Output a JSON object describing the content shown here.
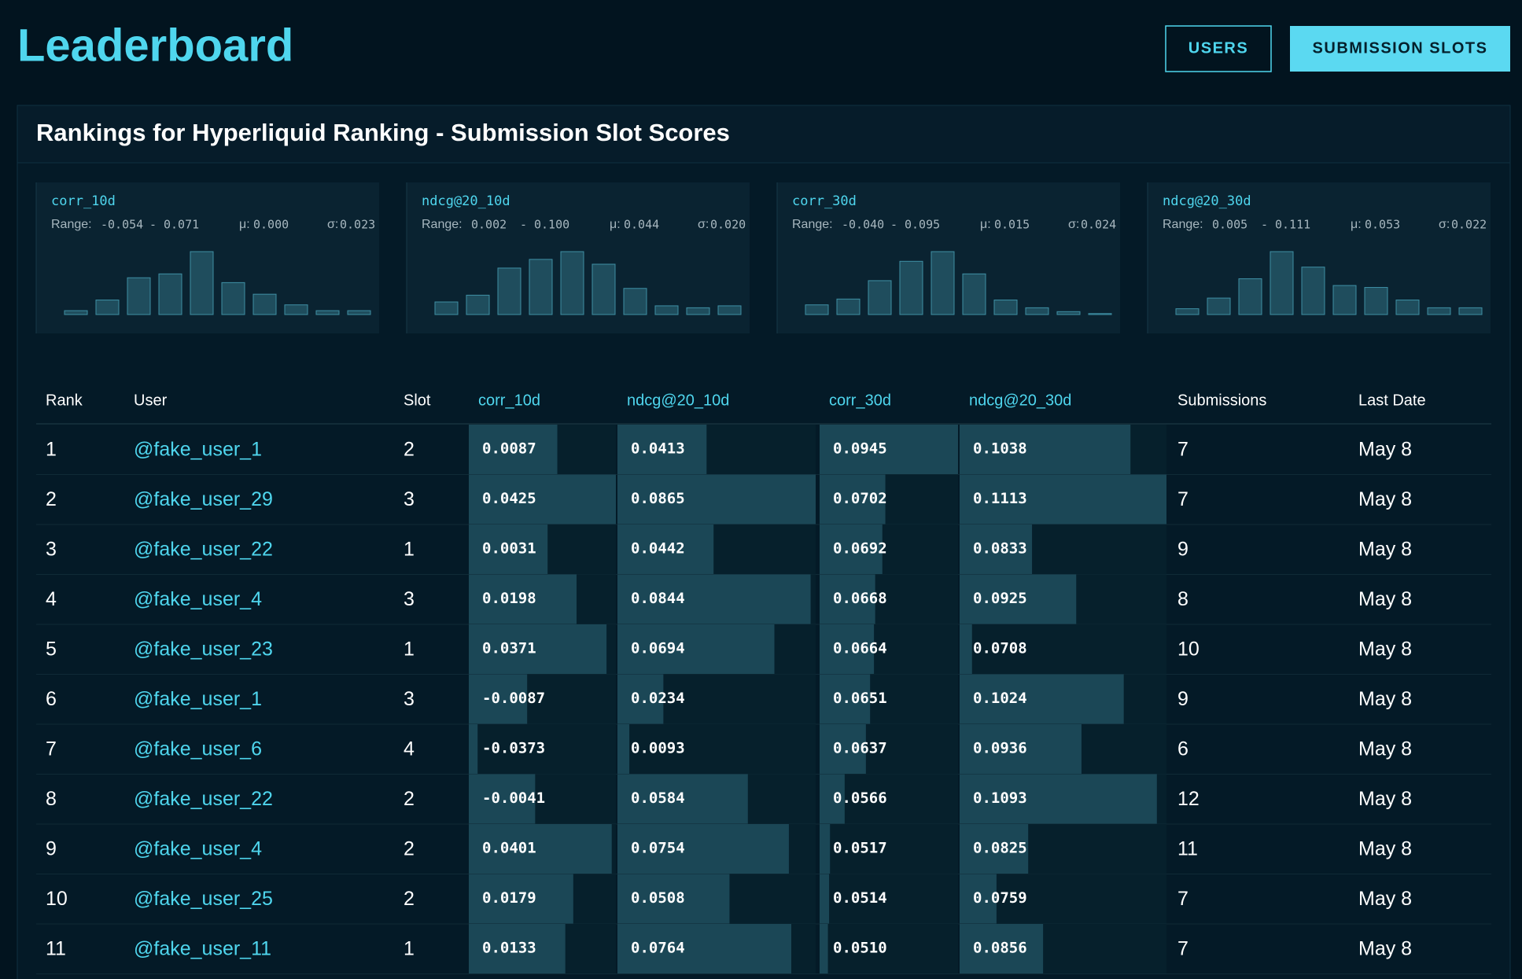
{
  "header": {
    "title": "Leaderboard",
    "buttons": [
      "USERS",
      "SUBMISSION SLOTS"
    ]
  },
  "panel": {
    "title": "Rankings for Hyperliquid Ranking - Submission Slot Scores"
  },
  "histograms": [
    {
      "name": "corr_10d",
      "range_label": "Range:",
      "min": "-0.054",
      "sep": "-",
      "max": "0.071",
      "mu_label": "μ:",
      "mu": "0.000",
      "sigma_label": "σ:",
      "sigma": "0.023",
      "counts": [
        4,
        15,
        38,
        42,
        65,
        33,
        21,
        10,
        4,
        4
      ]
    },
    {
      "name": "ndcg@20_10d",
      "range_label": "Range:",
      "min": "0.002",
      "sep": "-",
      "max": "0.100",
      "mu_label": "μ:",
      "mu": "0.044",
      "sigma_label": "σ:",
      "sigma": "0.020",
      "counts": [
        13,
        20,
        48,
        57,
        65,
        52,
        27,
        9,
        7,
        9
      ]
    },
    {
      "name": "corr_30d",
      "range_label": "Range:",
      "min": "-0.040",
      "sep": "-",
      "max": "0.095",
      "mu_label": "μ:",
      "mu": "0.015",
      "sigma_label": "σ:",
      "sigma": "0.024",
      "counts": [
        10,
        16,
        35,
        55,
        65,
        42,
        15,
        7,
        3,
        1
      ]
    },
    {
      "name": "ndcg@20_30d",
      "range_label": "Range:",
      "min": "0.005",
      "sep": "-",
      "max": "0.111",
      "mu_label": "μ:",
      "mu": "0.053",
      "sigma_label": "σ:",
      "sigma": "0.022",
      "counts": [
        6,
        17,
        37,
        65,
        49,
        30,
        28,
        15,
        7,
        7
      ]
    }
  ],
  "table": {
    "columns": [
      "Rank",
      "User",
      "Slot",
      "corr_10d",
      "ndcg@20_10d",
      "corr_30d",
      "ndcg@20_30d",
      "Submissions",
      "Last Date"
    ],
    "rows": [
      [
        1,
        "@fake_user_1",
        2,
        "0.0087",
        "0.0413",
        "0.0945",
        "0.1038",
        7,
        "May 8"
      ],
      [
        2,
        "@fake_user_29",
        3,
        "0.0425",
        "0.0865",
        "0.0702",
        "0.1113",
        7,
        "May 8"
      ],
      [
        3,
        "@fake_user_22",
        1,
        "0.0031",
        "0.0442",
        "0.0692",
        "0.0833",
        9,
        "May 8"
      ],
      [
        4,
        "@fake_user_4",
        3,
        "0.0198",
        "0.0844",
        "0.0668",
        "0.0925",
        8,
        "May 8"
      ],
      [
        5,
        "@fake_user_23",
        1,
        "0.0371",
        "0.0694",
        "0.0664",
        "0.0708",
        10,
        "May 8"
      ],
      [
        6,
        "@fake_user_1",
        3,
        "-0.0087",
        "0.0234",
        "0.0651",
        "0.1024",
        9,
        "May 8"
      ],
      [
        7,
        "@fake_user_6",
        4,
        "-0.0373",
        "0.0093",
        "0.0637",
        "0.0936",
        6,
        "May 8"
      ],
      [
        8,
        "@fake_user_22",
        2,
        "-0.0041",
        "0.0584",
        "0.0566",
        "0.1093",
        12,
        "May 8"
      ],
      [
        9,
        "@fake_user_4",
        2,
        "0.0401",
        "0.0754",
        "0.0517",
        "0.0825",
        11,
        "May 8"
      ],
      [
        10,
        "@fake_user_25",
        2,
        "0.0179",
        "0.0508",
        "0.0514",
        "0.0759",
        7,
        "May 8"
      ],
      [
        11,
        "@fake_user_11",
        1,
        "0.0133",
        "0.0764",
        "0.0510",
        "0.0856",
        7,
        "May 8"
      ]
    ]
  }
}
